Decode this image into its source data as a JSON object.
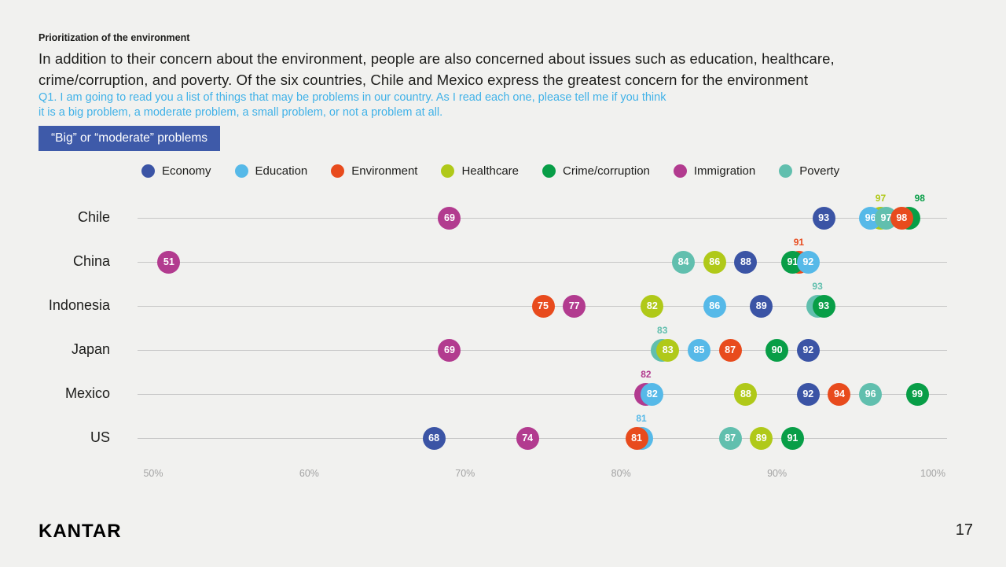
{
  "slide": {
    "kicker": "Prioritization of the environment",
    "headline": "In addition to their concern about the environment, people are also concerned about issues such as education, healthcare, crime/corruption, and poverty. Of the six countries, Chile and Mexico express the greatest concern for the environment",
    "question": "Q1. I am going to read you a list of things that may be problems in our country. As I read each one, please tell me if you think it is a big problem, a moderate problem, a small problem, or not a problem at all.",
    "badge": "“Big” or “moderate” problems",
    "logo": "KANTAR",
    "page_number": "17"
  },
  "chart_data": {
    "type": "scatter",
    "title": "“Big” or “moderate” problems (% per country per issue)",
    "legend_position": "top",
    "grid": "horizontal-row-lines",
    "x_axis": {
      "min": 50,
      "max": 100,
      "tick_labels": [
        "50%",
        "60%",
        "70%",
        "80%",
        "90%",
        "100%"
      ]
    },
    "series": [
      {
        "name": "Economy",
        "color": "#3b54a5"
      },
      {
        "name": "Education",
        "color": "#56b9e8"
      },
      {
        "name": "Environment",
        "color": "#e84b1d"
      },
      {
        "name": "Healthcare",
        "color": "#b0c919"
      },
      {
        "name": "Crime/corruption",
        "color": "#089e47"
      },
      {
        "name": "Immigration",
        "color": "#b23b8f"
      },
      {
        "name": "Poverty",
        "color": "#61bfae"
      }
    ],
    "rows": [
      {
        "country": "Chile",
        "points": [
          {
            "issue": "Immigration",
            "value": 69
          },
          {
            "issue": "Economy",
            "value": 93
          },
          {
            "issue": "Education",
            "value": 96
          },
          {
            "issue": "Healthcare",
            "value": 97,
            "hidden": true,
            "dx": -7
          },
          {
            "issue": "Poverty",
            "value": 97
          },
          {
            "issue": "Crime/corruption",
            "value": 98,
            "hidden": true,
            "dx": 9,
            "label_dx": 14
          },
          {
            "issue": "Environment",
            "value": 98
          }
        ]
      },
      {
        "country": "China",
        "points": [
          {
            "issue": "Immigration",
            "value": 51
          },
          {
            "issue": "Poverty",
            "value": 84
          },
          {
            "issue": "Healthcare",
            "value": 86
          },
          {
            "issue": "Economy",
            "value": 88
          },
          {
            "issue": "Environment",
            "value": 91,
            "hidden": true,
            "dx": 8
          },
          {
            "issue": "Crime/corruption",
            "value": 91
          },
          {
            "issue": "Education",
            "value": 92
          }
        ]
      },
      {
        "country": "Indonesia",
        "points": [
          {
            "issue": "Environment",
            "value": 75
          },
          {
            "issue": "Immigration",
            "value": 77
          },
          {
            "issue": "Healthcare",
            "value": 82
          },
          {
            "issue": "Education",
            "value": 86
          },
          {
            "issue": "Economy",
            "value": 89
          },
          {
            "issue": "Poverty",
            "value": 93,
            "hidden": true,
            "dx": -8
          },
          {
            "issue": "Crime/corruption",
            "value": 93
          }
        ]
      },
      {
        "country": "Japan",
        "points": [
          {
            "issue": "Immigration",
            "value": 69
          },
          {
            "issue": "Poverty",
            "value": 83,
            "hidden": true,
            "dx": -7
          },
          {
            "issue": "Healthcare",
            "value": 83
          },
          {
            "issue": "Education",
            "value": 85
          },
          {
            "issue": "Environment",
            "value": 87
          },
          {
            "issue": "Crime/corruption",
            "value": 90
          },
          {
            "issue": "Economy",
            "value": 92
          }
        ]
      },
      {
        "country": "Mexico",
        "points": [
          {
            "issue": "Immigration",
            "value": 82,
            "hidden": true,
            "dx": -8
          },
          {
            "issue": "Education",
            "value": 82
          },
          {
            "issue": "Healthcare",
            "value": 88
          },
          {
            "issue": "Economy",
            "value": 92
          },
          {
            "issue": "Environment",
            "value": 94
          },
          {
            "issue": "Poverty",
            "value": 96
          },
          {
            "issue": "Crime/corruption",
            "value": 99
          }
        ]
      },
      {
        "country": "US",
        "points": [
          {
            "issue": "Economy",
            "value": 68
          },
          {
            "issue": "Immigration",
            "value": 74
          },
          {
            "issue": "Education",
            "value": 81,
            "hidden": true,
            "dx": 6
          },
          {
            "issue": "Environment",
            "value": 81
          },
          {
            "issue": "Poverty",
            "value": 87
          },
          {
            "issue": "Healthcare",
            "value": 89
          },
          {
            "issue": "Crime/corruption",
            "value": 91
          }
        ]
      }
    ]
  }
}
